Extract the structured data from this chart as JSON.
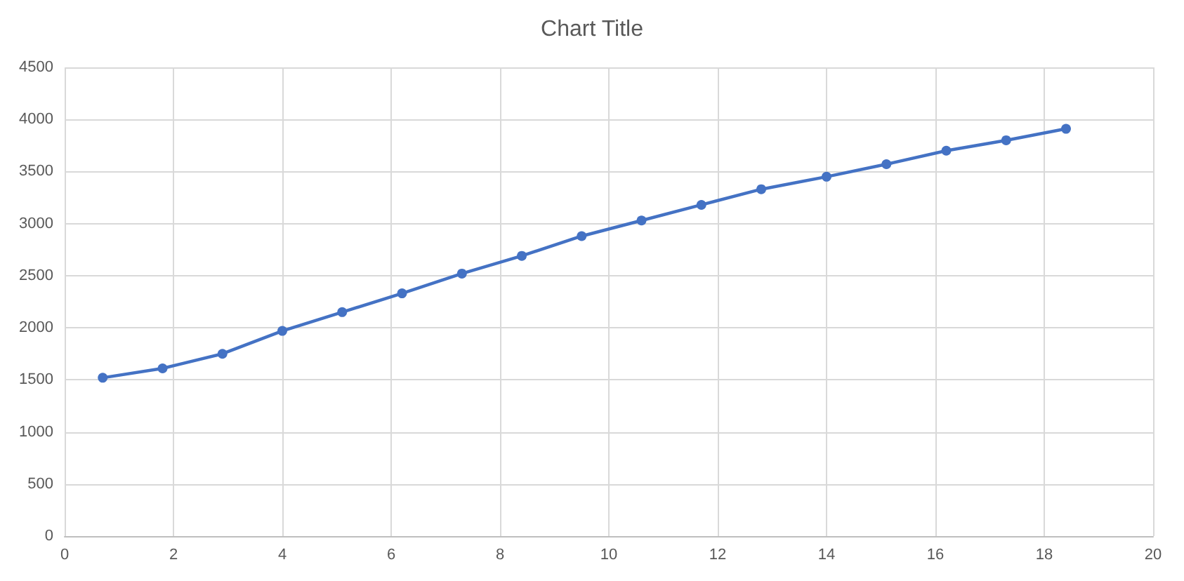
{
  "chart_data": {
    "type": "line",
    "title": "Chart Title",
    "x": [
      0.7,
      1.8,
      2.9,
      4.0,
      5.1,
      6.2,
      7.3,
      8.4,
      9.5,
      10.6,
      11.7,
      12.8,
      14.0,
      15.1,
      16.2,
      17.3,
      18.4
    ],
    "series": [
      {
        "color": "#4472c4",
        "values": [
          1520,
          1610,
          1750,
          1970,
          2150,
          2330,
          2520,
          2690,
          2880,
          3030,
          3180,
          3330,
          3450,
          3570,
          3700,
          3800,
          3910
        ]
      }
    ],
    "xlim": [
      0,
      20
    ],
    "xticks": [
      0,
      2,
      4,
      6,
      8,
      10,
      12,
      14,
      16,
      18,
      20
    ],
    "ylim": [
      0,
      4500
    ],
    "yticks": [
      0,
      500,
      1000,
      1500,
      2000,
      2500,
      3000,
      3500,
      4000,
      4500
    ],
    "grid": true,
    "marker": "circle",
    "line_style": "solid"
  }
}
